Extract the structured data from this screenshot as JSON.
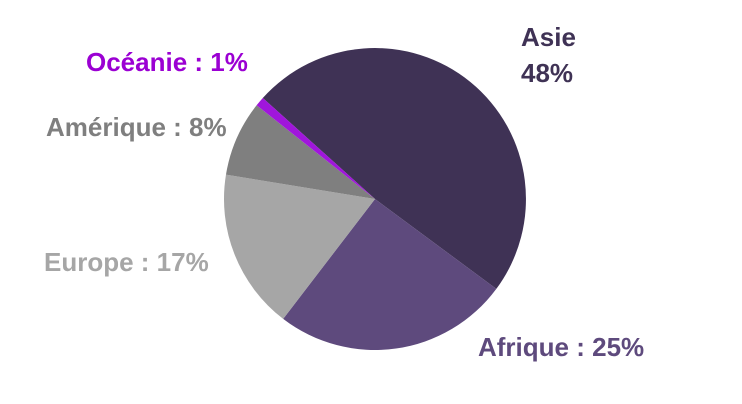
{
  "chart_data": {
    "type": "pie",
    "title": "",
    "unit": "%",
    "legend": "none",
    "background": "#FFFFFF",
    "direction": "clockwise",
    "start_angle_deg": -48,
    "categories": [
      "Asie",
      "Afrique",
      "Europe",
      "Amérique",
      "Océanie"
    ],
    "values": [
      48,
      25,
      17,
      8,
      1
    ],
    "slices": [
      {
        "id": "asie",
        "name": "Asie",
        "value": 48,
        "color": "#3F3255",
        "label": "Asie\n48%",
        "label_color": "#3F3255"
      },
      {
        "id": "afrique",
        "name": "Afrique",
        "value": 25,
        "color": "#5E4A7D",
        "label": "Afrique : 25%",
        "label_color": "#5E4A7D"
      },
      {
        "id": "europe",
        "name": "Europe",
        "value": 17,
        "color": "#A6A6A6",
        "label": "Europe : 17%",
        "label_color": "#A6A6A6"
      },
      {
        "id": "amerique",
        "name": "Amérique",
        "value": 8,
        "color": "#7F7F7F",
        "label": "Amérique : 8%",
        "label_color": "#7F7F7F"
      },
      {
        "id": "oceanie",
        "name": "Océanie",
        "value": 1,
        "color": "#A016DB",
        "label": "Océanie : 1%",
        "label_color": "#9B00D3"
      }
    ]
  }
}
